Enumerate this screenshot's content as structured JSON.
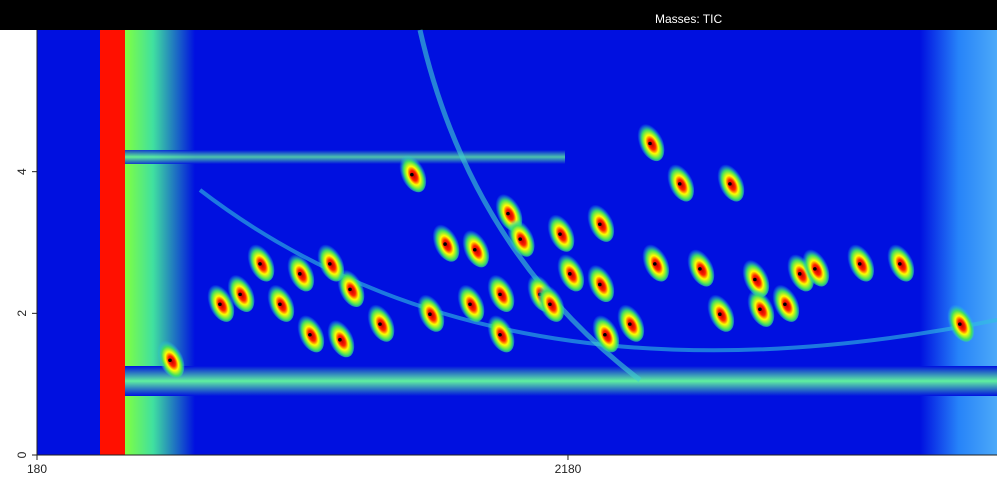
{
  "chart_data": {
    "type": "contour",
    "title": "Masses: TIC",
    "xlim": [
      180,
      3796
    ],
    "ylim": [
      0,
      6.0
    ],
    "xticks": [
      180,
      2180
    ],
    "yticks": [
      0,
      2,
      4
    ],
    "series": [
      {
        "name": null,
        "color": "#ff0000",
        "x": [
          1592,
          1954,
          1717,
          1829,
          2000,
          2150,
          2300,
          2489,
          2601,
          2790,
          1472,
          1660,
          1811,
          1924,
          2074,
          2187,
          2300,
          2413,
          2507,
          2677,
          2752,
          2884,
          2903,
          2997,
          3053,
          3110,
          3279,
          3430,
          1170,
          1283,
          1359,
          1095,
          1020,
          1208,
          1321,
          945,
          869,
          681,
          1924,
          2319,
          2112,
          3656
        ],
        "values": [
          4.0,
          3.45,
          3.02,
          2.94,
          3.09,
          3.16,
          3.3,
          4.44,
          3.87,
          3.87,
          1.89,
          2.03,
          2.17,
          2.31,
          2.31,
          2.6,
          2.45,
          1.89,
          2.74,
          2.67,
          2.03,
          2.52,
          2.1,
          2.17,
          2.6,
          2.67,
          2.74,
          2.74,
          2.6,
          2.74,
          2.38,
          2.17,
          2.74,
          1.74,
          1.67,
          2.31,
          2.17,
          1.38,
          1.74,
          1.74,
          2.17,
          1.89
        ]
      }
    ]
  }
}
